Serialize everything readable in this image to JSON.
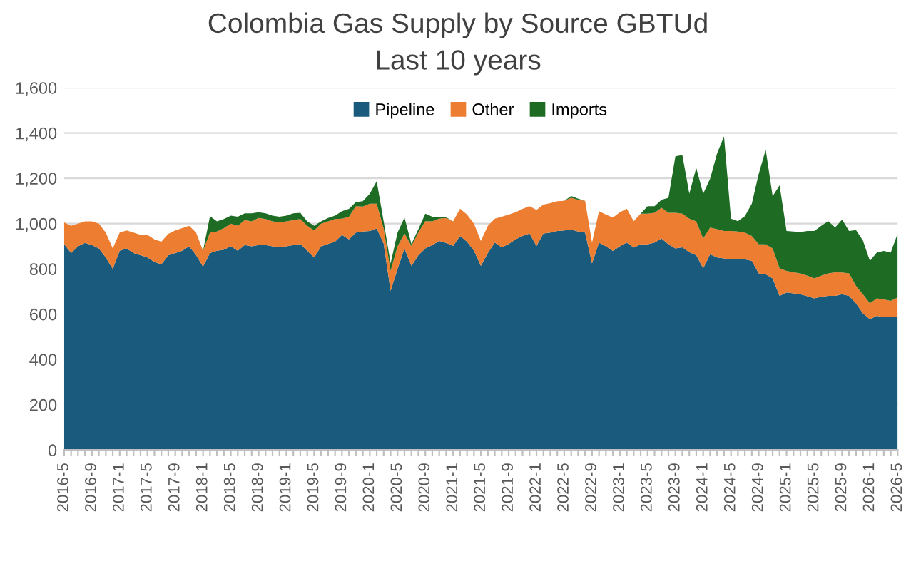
{
  "chart_data": {
    "type": "area",
    "stacked": true,
    "title": "Colombia Gas Supply by Source GBTUd",
    "subtitle": "Last 10 years",
    "categories": [
      "2016-5",
      null,
      null,
      null,
      "2016-9",
      null,
      null,
      null,
      "2017-1",
      null,
      null,
      null,
      "2017-5",
      null,
      null,
      null,
      "2017-9",
      null,
      null,
      null,
      "2018-1",
      null,
      null,
      null,
      "2018-5",
      null,
      null,
      null,
      "2018-9",
      null,
      null,
      null,
      "2019-1",
      null,
      null,
      null,
      "2019-5",
      null,
      null,
      null,
      "2019-9",
      null,
      null,
      null,
      "2020-1",
      null,
      null,
      null,
      "2020-5",
      null,
      null,
      null,
      "2020-9",
      null,
      null,
      null,
      "2021-1",
      null,
      null,
      null,
      "2021-5",
      null,
      null,
      null,
      "2021-9",
      null,
      null,
      null,
      "2022-1",
      null,
      null,
      null,
      "2022-5",
      null,
      null,
      null,
      "2022-9",
      null,
      null,
      null,
      "2023-1",
      null,
      null,
      null,
      "2023-5",
      null,
      null,
      null,
      "2023-9",
      null,
      null,
      null,
      "2024-1",
      null,
      null,
      null,
      "2024-5",
      null,
      null,
      null,
      "2024-9",
      null,
      null,
      null,
      "2025-1",
      null,
      null,
      null,
      "2025-5",
      null,
      null,
      null,
      "2025-9",
      null,
      null,
      null,
      "2026-1",
      null,
      null,
      null,
      "2026-5"
    ],
    "series": [
      {
        "name": "Pipeline",
        "color": "#195a7d",
        "values": [
          910,
          870,
          900,
          915,
          905,
          890,
          850,
          800,
          880,
          890,
          870,
          860,
          850,
          830,
          820,
          860,
          870,
          880,
          900,
          860,
          810,
          870,
          880,
          885,
          900,
          880,
          905,
          900,
          905,
          905,
          900,
          895,
          900,
          905,
          910,
          880,
          850,
          900,
          910,
          920,
          950,
          930,
          960,
          965,
          967,
          978,
          912,
          703,
          800,
          890,
          813,
          860,
          890,
          905,
          923,
          915,
          901,
          945,
          920,
          880,
          813,
          870,
          916,
          895,
          910,
          930,
          945,
          956,
          901,
          956,
          960,
          967,
          970,
          974,
          965,
          960,
          824,
          916,
          900,
          879,
          900,
          916,
          894,
          908,
          908,
          916,
          934,
          908,
          890,
          895,
          874,
          860,
          802,
          864,
          850,
          846,
          842,
          842,
          842,
          835,
          780,
          776,
          758,
          681,
          696,
          692,
          688,
          679,
          670,
          677,
          681,
          681,
          688,
          681,
          648,
          604,
          578,
          593,
          587,
          587,
          590
        ]
      },
      {
        "name": "Other",
        "color": "#ed7d31",
        "values": [
          95,
          120,
          100,
          95,
          105,
          110,
          110,
          90,
          80,
          80,
          90,
          90,
          100,
          100,
          100,
          95,
          100,
          100,
          90,
          100,
          70,
          90,
          85,
          95,
          100,
          110,
          110,
          110,
          120,
          115,
          110,
          110,
          110,
          110,
          110,
          110,
          120,
          100,
          100,
          100,
          72,
          100,
          117,
          110,
          121,
          110,
          66,
          88,
          100,
          66,
          88,
          100,
          121,
          105,
          99,
          110,
          109,
          121,
          120,
          120,
          110,
          120,
          106,
          135,
          130,
          120,
          120,
          121,
          159,
          128,
          130,
          132,
          130,
          140,
          140,
          140,
          92,
          139,
          140,
          147,
          150,
          150,
          117,
          136,
          136,
          132,
          136,
          140,
          158,
          149,
          148,
          150,
          132,
          118,
          125,
          121,
          125,
          123,
          118,
          110,
          128,
          132,
          132,
          121,
          95,
          93,
          92,
          91,
          88,
          93,
          99,
          104,
          96,
          99,
          77,
          84,
          70,
          77,
          78,
          72,
          84
        ]
      },
      {
        "name": "Imports",
        "color": "#1e6b24",
        "values": [
          0,
          0,
          0,
          0,
          0,
          0,
          0,
          0,
          0,
          0,
          0,
          0,
          0,
          0,
          0,
          0,
          0,
          0,
          0,
          0,
          0,
          73,
          45,
          40,
          35,
          40,
          30,
          35,
          25,
          25,
          25,
          25,
          25,
          30,
          28,
          20,
          20,
          10,
          15,
          15,
          33,
          35,
          18,
          24,
          44,
          99,
          32,
          33,
          60,
          70,
          9,
          15,
          33,
          20,
          8,
          3,
          0,
          0,
          0,
          0,
          0,
          0,
          0,
          0,
          0,
          0,
          0,
          0,
          0,
          0,
          0,
          0,
          0,
          8,
          5,
          0,
          0,
          0,
          0,
          0,
          0,
          0,
          0,
          0,
          33,
          29,
          35,
          66,
          249,
          259,
          110,
          236,
          198,
          216,
          335,
          418,
          55,
          46,
          73,
          143,
          312,
          418,
          231,
          367,
          176,
          180,
          183,
          197,
          209,
          220,
          231,
          198,
          234,
          187,
          246,
          237,
          187,
          202,
          214,
          213,
          282
        ]
      }
    ],
    "ylim": [
      0,
      1600
    ],
    "yticks": [
      0,
      200,
      400,
      600,
      800,
      {
        "value": 1000,
        "label": "1,000"
      },
      {
        "value": 1200,
        "label": "1,200"
      },
      {
        "value": 1400,
        "label": "1,400"
      },
      {
        "value": 1600,
        "label": "1,600"
      }
    ],
    "grid": "y",
    "legend": "top"
  }
}
